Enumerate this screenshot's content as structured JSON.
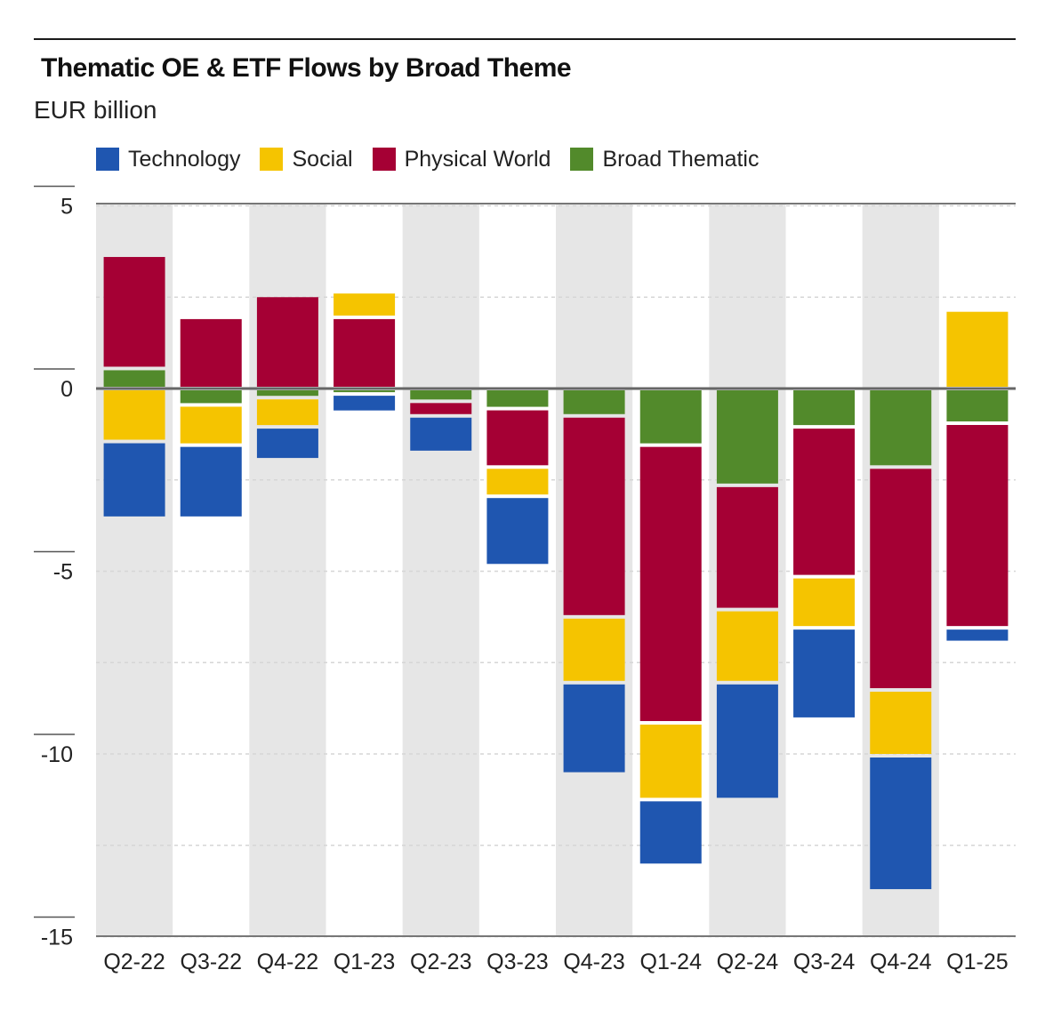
{
  "chart_data": {
    "type": "bar",
    "stacked": true,
    "title": "Thematic OE & ETF Flows by Broad Theme",
    "subtitle": "EUR billion",
    "xlabel": "",
    "ylabel": "",
    "categories": [
      "Q2-22",
      "Q3-22",
      "Q4-22",
      "Q1-23",
      "Q2-23",
      "Q3-23",
      "Q4-23",
      "Q1-24",
      "Q2-24",
      "Q3-24",
      "Q4-24",
      "Q1-25"
    ],
    "ylim": [
      -15,
      5
    ],
    "yticks": [
      5,
      0,
      -5,
      -10,
      -15
    ],
    "ytick_labels": [
      "5",
      "0",
      "-5",
      "-10",
      "-15"
    ],
    "grid": true,
    "legend_position": "top-left",
    "series": [
      {
        "name": "Technology",
        "color": "#1f56b0",
        "values": [
          -2.1,
          -2.0,
          -0.9,
          -0.5,
          -1.0,
          -1.9,
          -2.5,
          -1.8,
          -3.2,
          -2.5,
          -3.7,
          -0.4
        ]
      },
      {
        "name": "Social",
        "color": "#f5c400",
        "values": [
          -1.4,
          -1.1,
          -0.8,
          0.7,
          0.0,
          -0.8,
          -1.8,
          -2.1,
          -2.0,
          -1.4,
          -1.8,
          2.1
        ]
      },
      {
        "name": "Physical World",
        "color": "#a50034",
        "values": [
          3.1,
          1.9,
          2.5,
          1.9,
          -0.4,
          -1.6,
          -5.5,
          -7.6,
          -3.4,
          -4.1,
          -6.1,
          -5.6
        ]
      },
      {
        "name": "Broad Thematic",
        "color": "#528a2b",
        "values": [
          0.5,
          -0.4,
          -0.2,
          -0.1,
          -0.3,
          -0.5,
          -0.7,
          -1.5,
          -2.6,
          -1.0,
          -2.1,
          -0.9
        ]
      }
    ],
    "stack_order_positive": [
      "Broad Thematic",
      "Physical World",
      "Social",
      "Technology"
    ],
    "stack_order_negative": [
      "Broad Thematic",
      "Social",
      "Technology"
    ]
  }
}
